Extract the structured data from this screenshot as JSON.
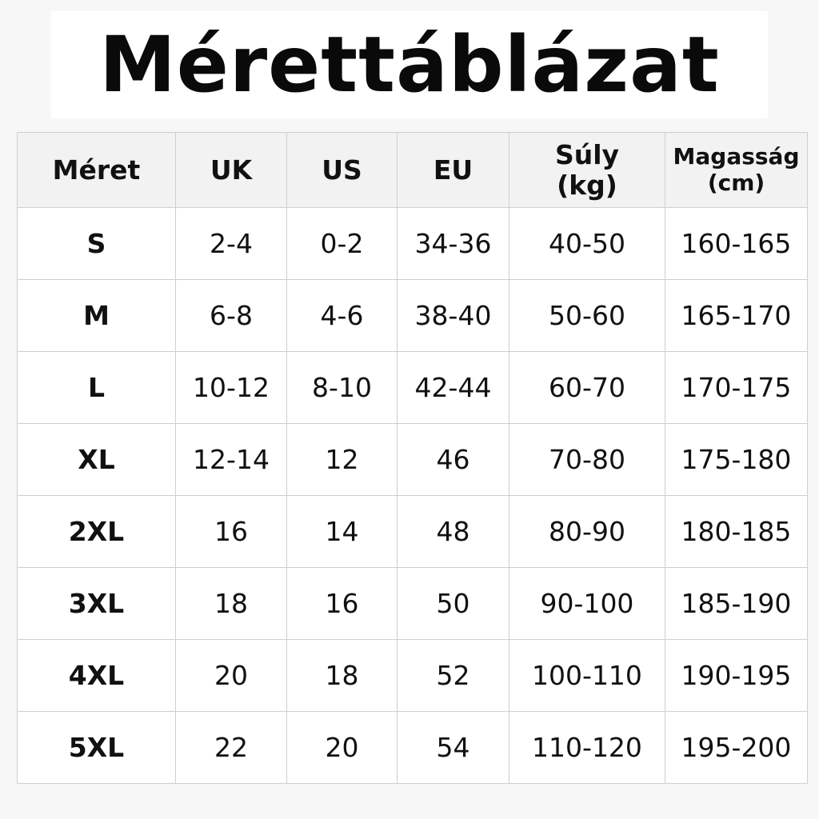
{
  "title": "Mérettáblázat",
  "table": {
    "headers": [
      {
        "line1": "Méret",
        "line2": ""
      },
      {
        "line1": "UK",
        "line2": ""
      },
      {
        "line1": "US",
        "line2": ""
      },
      {
        "line1": "EU",
        "line2": ""
      },
      {
        "line1": "Súly",
        "line2": "(kg)"
      },
      {
        "line1": "Magasság",
        "line2": "(cm)"
      }
    ],
    "rows": [
      [
        "S",
        "2-4",
        "0-2",
        "34-36",
        "40-50",
        "160-165"
      ],
      [
        "M",
        "6-8",
        "4-6",
        "38-40",
        "50-60",
        "165-170"
      ],
      [
        "L",
        "10-12",
        "8-10",
        "42-44",
        "60-70",
        "170-175"
      ],
      [
        "XL",
        "12-14",
        "12",
        "46",
        "70-80",
        "175-180"
      ],
      [
        "2XL",
        "16",
        "14",
        "48",
        "80-90",
        "180-185"
      ],
      [
        "3XL",
        "18",
        "16",
        "50",
        "90-100",
        "185-190"
      ],
      [
        "4XL",
        "20",
        "18",
        "52",
        "100-110",
        "190-195"
      ],
      [
        "5XL",
        "22",
        "20",
        "54",
        "110-120",
        "195-200"
      ]
    ]
  }
}
